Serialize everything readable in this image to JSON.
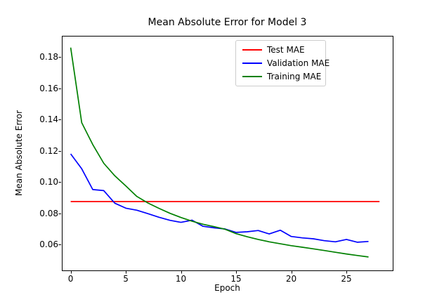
{
  "chart_data": {
    "type": "line",
    "title": "Mean Absolute Error for Model 3",
    "xlabel": "Epoch",
    "ylabel": "Mean Absolute Error",
    "xlim": [
      -0.8,
      29.2
    ],
    "ylim": [
      0.0435,
      0.1935
    ],
    "xticks": [
      0,
      5,
      10,
      15,
      20,
      25
    ],
    "xtick_labels": [
      "0",
      "5",
      "10",
      "15",
      "20",
      "25"
    ],
    "yticks": [
      0.06,
      0.08,
      0.1,
      0.12,
      0.14,
      0.16,
      0.18
    ],
    "ytick_labels": [
      "0.06",
      "0.08",
      "0.10",
      "0.12",
      "0.14",
      "0.16",
      "0.18"
    ],
    "grid": false,
    "legend_position": "upper right",
    "axis_color": "#000000",
    "legend_border_color": "#cccccc",
    "series": [
      {
        "name": "Test MAE",
        "color": "#ff0000",
        "x": [
          0,
          28
        ],
        "y": [
          0.0875,
          0.0875
        ]
      },
      {
        "name": "Validation MAE",
        "color": "#0000ff",
        "x": [
          0,
          1,
          2,
          3,
          4,
          5,
          6,
          7,
          8,
          9,
          10,
          11,
          12,
          13,
          14,
          15,
          16,
          17,
          18,
          19,
          20,
          21,
          22,
          23,
          24,
          25,
          26,
          27
        ],
        "y": [
          0.118,
          0.1085,
          0.0952,
          0.0945,
          0.0865,
          0.0833,
          0.082,
          0.0798,
          0.0775,
          0.0755,
          0.0742,
          0.0756,
          0.0717,
          0.0707,
          0.07,
          0.0678,
          0.0682,
          0.069,
          0.0668,
          0.0692,
          0.0652,
          0.0643,
          0.0637,
          0.0625,
          0.0618,
          0.0633,
          0.0615,
          0.062
        ]
      },
      {
        "name": "Training MAE",
        "color": "#008000",
        "x": [
          0,
          1,
          2,
          3,
          4,
          5,
          6,
          7,
          8,
          9,
          10,
          11,
          12,
          13,
          14,
          15,
          16,
          17,
          18,
          19,
          20,
          21,
          22,
          23,
          24,
          25,
          26,
          27
        ],
        "y": [
          0.186,
          0.138,
          0.124,
          0.112,
          0.104,
          0.0975,
          0.0908,
          0.0866,
          0.0832,
          0.08,
          0.0773,
          0.075,
          0.073,
          0.0715,
          0.0698,
          0.067,
          0.065,
          0.0633,
          0.0618,
          0.0605,
          0.0593,
          0.0583,
          0.0573,
          0.0562,
          0.0551,
          0.054,
          0.053,
          0.0521
        ]
      }
    ]
  }
}
